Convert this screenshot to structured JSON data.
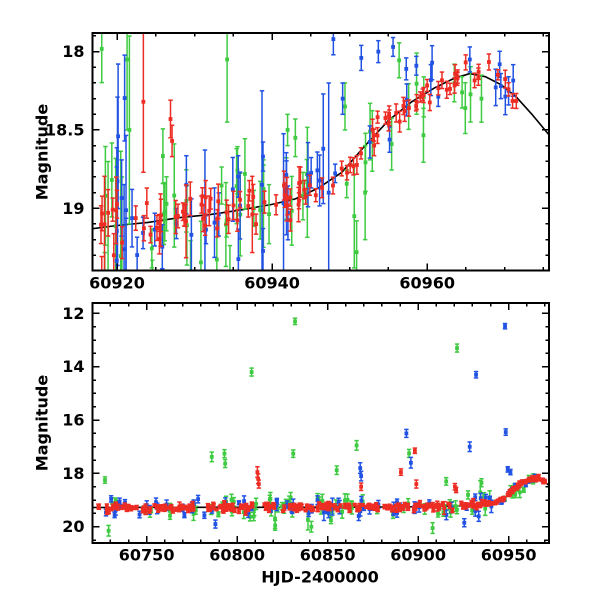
{
  "figure": {
    "background": "#ffffff",
    "text_color": "#000000"
  },
  "chart_data": {
    "type": "scatter",
    "title": "",
    "description": "Two-panel astronomical light curve (magnitude vs HJD-2400000): three photometric bands shown as green, blue and red points with error bars, plus a black model curve. Top panel is a zoom on the brightening episode (HJD ~60917-60976); bottom panel shows the full campaign (HJD ~60720-60972) with a flat band near mag 19.3, bright outlier flares, and a rise to mag ~18.15 at the end.",
    "legend": "none",
    "grid": false,
    "seed": 42,
    "model_color": "#000000",
    "series_colors": {
      "green": "#3ecb41",
      "blue": "#2152e3",
      "red": "#ed2d24"
    },
    "panels": [
      {
        "name": "zoom-panel",
        "ylabel": "Magnitude",
        "xlabel": "",
        "xlim": [
          60916.84,
          60975.71
        ],
        "ylim_top_to_bottom": [
          17.881,
          19.397
        ],
        "y_axis_inverted_magnitude": true,
        "xticks": {
          "values": [
            60920,
            60940,
            60960
          ],
          "labels": [
            "60920",
            "60940",
            "60960"
          ],
          "minor_step": 5
        },
        "yticks": {
          "values": [
            18,
            18.5,
            19
          ],
          "labels": [
            "18",
            "18.5",
            "19"
          ],
          "minor_step": 0.1
        },
        "model": [
          [
            60916.8,
            19.13
          ],
          [
            60920,
            19.11
          ],
          [
            60924,
            19.09
          ],
          [
            60928,
            19.06
          ],
          [
            60932,
            19.04
          ],
          [
            60936,
            19.01
          ],
          [
            60940,
            18.975
          ],
          [
            60943,
            18.94
          ],
          [
            60946,
            18.87
          ],
          [
            60949,
            18.77
          ],
          [
            60952,
            18.6
          ],
          [
            60955,
            18.44
          ],
          [
            60958,
            18.32
          ],
          [
            60961,
            18.23
          ],
          [
            60963.5,
            18.17
          ],
          [
            60965.5,
            18.14
          ],
          [
            60967.5,
            18.16
          ],
          [
            60969.5,
            18.21
          ],
          [
            60971.5,
            18.29
          ],
          [
            60973.5,
            18.4
          ],
          [
            60975.7,
            18.53
          ]
        ],
        "series": [
          {
            "name": "band-green",
            "color": "#3ecb41",
            "clusters": [
              {
                "n": 8,
                "x0": 60917.5,
                "x1": 60922.5,
                "sigma": 0.5,
                "errMin": 0.15,
                "errMax": 0.5,
                "bigErrProb": 0.3,
                "bigErrScale": 2
              },
              {
                "n": 30,
                "x0": 60922.5,
                "x1": 60946,
                "sigma": 0.2,
                "errMin": 0.09,
                "errMax": 0.28,
                "bigErrProb": 0.08,
                "bigErrScale": 2.2
              },
              {
                "n": 12,
                "x0": 60946,
                "x1": 60966,
                "sigma": 0.13,
                "errMin": 0.08,
                "errMax": 0.2,
                "bigErrProb": 0,
                "bigErrScale": 1
              }
            ],
            "points": [
              [
                60921.3,
                18.05,
                0.45
              ],
              [
                60921.6,
                18.5,
                0.6
              ],
              [
                60934.2,
                18.05,
                0.4
              ],
              [
                60942,
                18.5,
                0.1
              ],
              [
                60943,
                18.55,
                0.12
              ],
              [
                60949.4,
                18.35,
                0.15
              ],
              [
                60950.6,
                19.05,
                0.33
              ],
              [
                60950.9,
                19.28,
                0.2
              ],
              [
                60952,
                18.9,
                0.3
              ],
              [
                60963.5,
                18.2,
                0.12
              ],
              [
                60964.5,
                18.26,
                0.1
              ],
              [
                60967,
                18.3,
                0.15
              ]
            ]
          },
          {
            "name": "band-blue",
            "color": "#2152e3",
            "clusters": [
              {
                "n": 10,
                "x0": 60919.8,
                "x1": 60921.2,
                "sigma": 0.45,
                "errMin": 0.2,
                "errMax": 0.6,
                "bigErrProb": 0.3,
                "bigErrScale": 1.8
              },
              {
                "n": 26,
                "x0": 60922,
                "x1": 60946,
                "sigma": 0.17,
                "errMin": 0.07,
                "errMax": 0.25,
                "bigErrProb": 0.08,
                "bigErrScale": 2.2
              },
              {
                "n": 12,
                "x0": 60946,
                "x1": 60971,
                "sigma": 0.1,
                "errMin": 0.05,
                "errMax": 0.12,
                "bigErrProb": 0,
                "bigErrScale": 1
              }
            ],
            "points": [
              [
                60938.7,
                18.85,
                0.6
              ],
              [
                60946.6,
                18.62,
                0.35
              ],
              [
                60947.3,
                18.9,
                0.7
              ],
              [
                60947.9,
                17.92,
                0.1
              ],
              [
                60949.1,
                18.3,
                0.1
              ],
              [
                60951.5,
                18.04,
                0.08
              ],
              [
                60953.7,
                18.0,
                0.07
              ],
              [
                60955.6,
                17.97,
                0.06
              ],
              [
                60957.3,
                18.11,
                0.07
              ],
              [
                60958.6,
                18.09,
                0.06
              ],
              [
                60965.5,
                18.05,
                0.08
              ],
              [
                60969.5,
                18.22,
                0.08
              ],
              [
                60970.5,
                18.25,
                0.09
              ]
            ]
          },
          {
            "name": "band-red",
            "color": "#ed2d24",
            "clusters": [
              {
                "n": 10,
                "x0": 60917,
                "x1": 60921,
                "sigma": 0.14,
                "errMin": 0.06,
                "errMax": 0.16,
                "bigErrProb": 0.15,
                "bigErrScale": 3
              },
              {
                "n": 48,
                "x0": 60922,
                "x1": 60944,
                "sigma": 0.09,
                "errMin": 0.05,
                "errMax": 0.11,
                "bigErrProb": 0.04,
                "bigErrScale": 2.5
              },
              {
                "n": 26,
                "x0": 60944,
                "x1": 60958,
                "sigma": 0.05,
                "errMin": 0.035,
                "errMax": 0.07,
                "bigErrProb": 0,
                "bigErrScale": 1
              },
              {
                "n": 26,
                "x0": 60958,
                "x1": 60971.5,
                "sigma": 0.04,
                "errMin": 0.03,
                "errMax": 0.06,
                "bigErrProb": 0,
                "bigErrScale": 1
              }
            ],
            "points": [
              [
                60923.4,
                18.32,
                0.45
              ],
              [
                60926.9,
                18.43,
                0.12
              ],
              [
                60927.1,
                18.57,
                0.1
              ]
            ]
          }
        ]
      },
      {
        "name": "full-campaign-panel",
        "ylabel": "Magnitude",
        "xlabel": "HJD-2400000",
        "xlim": [
          60720.1,
          60972.3
        ],
        "ylim_top_to_bottom": [
          11.61,
          20.61
        ],
        "y_axis_inverted_magnitude": true,
        "xticks": {
          "values": [
            60750,
            60800,
            60850,
            60900,
            60950
          ],
          "labels": [
            "60750",
            "60800",
            "60850",
            "60900",
            "60950"
          ],
          "minor_step": 10
        },
        "yticks": {
          "values": [
            12,
            14,
            16,
            18,
            20
          ],
          "labels": [
            "12",
            "14",
            "16",
            "18",
            "20"
          ],
          "minor_step": 0.5
        },
        "model": [
          [
            60720.1,
            19.28
          ],
          [
            60760,
            19.27
          ],
          [
            60800,
            19.27
          ],
          [
            60840,
            19.27
          ],
          [
            60880,
            19.26
          ],
          [
            60905,
            19.25
          ],
          [
            60925,
            19.21
          ],
          [
            60940,
            19.12
          ],
          [
            60945,
            19.0
          ],
          [
            60948,
            18.9
          ],
          [
            60951,
            18.72
          ],
          [
            60954,
            18.52
          ],
          [
            60957,
            18.37
          ],
          [
            60960,
            18.27
          ],
          [
            60963,
            18.2
          ],
          [
            60965,
            18.18
          ],
          [
            60967,
            18.2
          ],
          [
            60969,
            18.28
          ],
          [
            60971,
            18.38
          ],
          [
            60972.3,
            18.45
          ]
        ],
        "series": [
          {
            "name": "band-green",
            "color": "#3ecb41",
            "clusters": [
              {
                "n": 70,
                "x0": 60723,
                "x1": 60945,
                "sigma": 0.22,
                "errMin": 0.09,
                "errMax": 0.26,
                "bigErrProb": 0.05,
                "bigErrScale": 1.8
              },
              {
                "n": 12,
                "x0": 60945,
                "x1": 60967,
                "sigma": 0.15,
                "errMin": 0.08,
                "errMax": 0.2,
                "bigErrProb": 0,
                "bigErrScale": 1
              }
            ],
            "points": [
              [
                60727,
                18.25,
                0.12
              ],
              [
                60729,
                20.15,
                0.2
              ],
              [
                60786,
                17.38,
                0.18
              ],
              [
                60793,
                17.26,
                0.15
              ],
              [
                60793.4,
                17.63,
                0.15
              ],
              [
                60808,
                14.2,
                0.15
              ],
              [
                60821,
                19.95,
                0.18
              ],
              [
                60831,
                17.26,
                0.14
              ],
              [
                60832,
                12.3,
                0.12
              ],
              [
                60841,
                20.0,
                0.2
              ],
              [
                60855,
                17.88,
                0.16
              ],
              [
                60866,
                16.95,
                0.18
              ],
              [
                60895,
                17.25,
                0.15
              ],
              [
                60908,
                20.05,
                0.2
              ],
              [
                60915.5,
                18.3,
                0.14
              ],
              [
                60921.5,
                13.3,
                0.15
              ],
              [
                60935,
                18.35,
                0.15
              ]
            ]
          },
          {
            "name": "band-blue",
            "color": "#2152e3",
            "clusters": [
              {
                "n": 70,
                "x0": 60725,
                "x1": 60945,
                "sigma": 0.18,
                "errMin": 0.07,
                "errMax": 0.2,
                "bigErrProb": 0.05,
                "bigErrScale": 1.8
              },
              {
                "n": 20,
                "x0": 60945,
                "x1": 60970,
                "sigma": 0.07,
                "errMin": 0.04,
                "errMax": 0.09,
                "bigErrProb": 0,
                "bigErrScale": 1
              }
            ],
            "points": [
              [
                60788,
                19.9,
                0.15
              ],
              [
                60868,
                17.8,
                0.2
              ],
              [
                60868.5,
                18.1,
                0.18
              ],
              [
                60893.5,
                16.5,
                0.15
              ],
              [
                60896,
                17.6,
                0.2
              ],
              [
                60925.5,
                19.85,
                0.15
              ],
              [
                60928.5,
                17.0,
                0.18
              ],
              [
                60932,
                14.3,
                0.12
              ],
              [
                60948,
                12.48,
                0.1
              ],
              [
                60948.4,
                16.45,
                0.12
              ],
              [
                60949.5,
                17.85,
                0.1
              ],
              [
                60951,
                17.95,
                0.1
              ]
            ]
          },
          {
            "name": "band-red",
            "color": "#ed2d24",
            "clusters": [
              {
                "n": 250,
                "x0": 60723,
                "x1": 60940,
                "sigma": 0.07,
                "errMin": 0.04,
                "errMax": 0.11,
                "bigErrProb": 0.02,
                "bigErrScale": 2.5
              },
              {
                "n": 80,
                "x0": 60940,
                "x1": 60970,
                "sigma": 0.04,
                "errMin": 0.03,
                "errMax": 0.06,
                "bigErrProb": 0,
                "bigErrScale": 1
              }
            ],
            "points": [
              [
                60811.2,
                17.95,
                0.2
              ],
              [
                60811.6,
                18.2,
                0.18
              ],
              [
                60812,
                18.4,
                0.15
              ],
              [
                60868.5,
                18.5,
                0.14
              ],
              [
                60890.5,
                17.95,
                0.12
              ],
              [
                60898.2,
                17.15,
                0.1
              ],
              [
                60899,
                18.4,
                0.15
              ],
              [
                60920.3,
                18.5,
                0.12
              ],
              [
                60921,
                18.62,
                0.1
              ]
            ]
          }
        ]
      }
    ]
  }
}
